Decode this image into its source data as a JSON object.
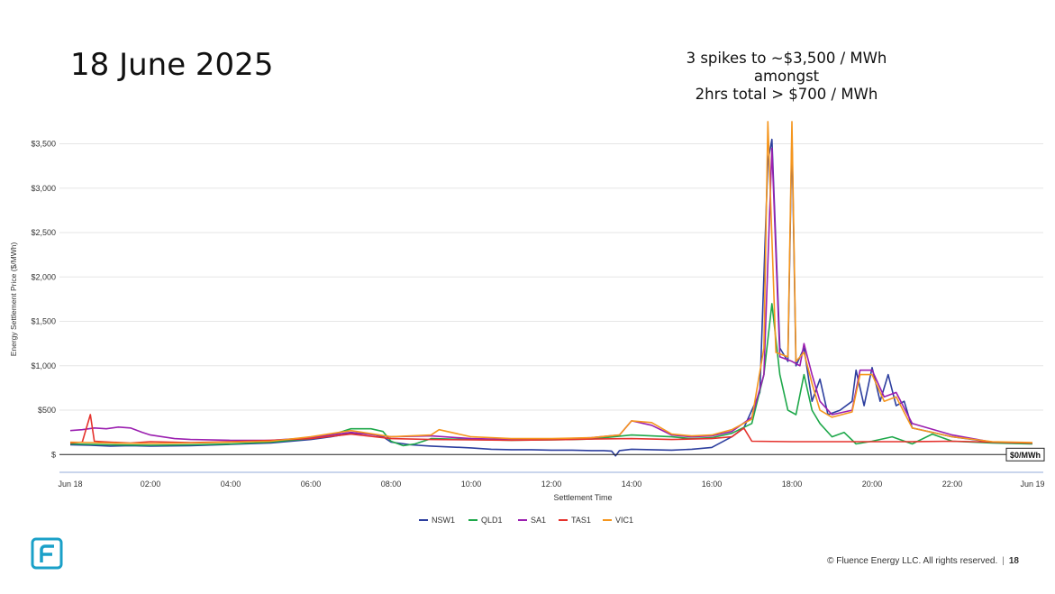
{
  "slide": {
    "title": "18 June 2025",
    "annotation_lines": [
      "3 spikes to ~$3,500 / MWh",
      "amongst",
      "2hrs total > $700 / MWh"
    ],
    "footer_text": "© Fluence Energy LLC. All rights reserved.",
    "page_number": "18",
    "logo_icon": "fluence-logo-icon"
  },
  "chart_data": {
    "type": "line",
    "xlabel": "Settlement Time",
    "ylabel": "Energy Settlement Price ($/MWh)",
    "x_ticks": [
      "Jun 18",
      "02:00",
      "04:00",
      "06:00",
      "08:00",
      "10:00",
      "12:00",
      "14:00",
      "16:00",
      "18:00",
      "20:00",
      "22:00",
      "Jun 19"
    ],
    "y_ticks": [
      "$",
      "$500",
      "$1,000",
      "$1,500",
      "$2,000",
      "$2,500",
      "$3,000",
      "$3,500"
    ],
    "y_tick_values": [
      0,
      500,
      1000,
      1500,
      2000,
      2500,
      3000,
      3500
    ],
    "ylim": [
      -200,
      3800
    ],
    "xlim_hours": [
      0,
      24
    ],
    "reference_line": {
      "value": 0,
      "label": "$0/MWh"
    },
    "grid": "horizontal",
    "legend_position": "bottom",
    "series": [
      {
        "name": "NSW1",
        "color": "#2c3e9e",
        "points": [
          [
            0,
            110
          ],
          [
            0.5,
            105
          ],
          [
            1,
            95
          ],
          [
            1.5,
            100
          ],
          [
            2,
            95
          ],
          [
            3,
            100
          ],
          [
            4,
            115
          ],
          [
            5,
            130
          ],
          [
            6,
            170
          ],
          [
            6.5,
            200
          ],
          [
            7,
            240
          ],
          [
            7.5,
            230
          ],
          [
            7.8,
            200
          ],
          [
            8,
            140
          ],
          [
            8.5,
            110
          ],
          [
            9,
            95
          ],
          [
            10,
            75
          ],
          [
            10.5,
            60
          ],
          [
            11,
            55
          ],
          [
            11.5,
            55
          ],
          [
            12,
            50
          ],
          [
            12.5,
            50
          ],
          [
            13,
            45
          ],
          [
            13.3,
            45
          ],
          [
            13.5,
            40
          ],
          [
            13.6,
            -15
          ],
          [
            13.7,
            45
          ],
          [
            14,
            60
          ],
          [
            14.5,
            55
          ],
          [
            15,
            50
          ],
          [
            15.5,
            60
          ],
          [
            16,
            80
          ],
          [
            16.5,
            200
          ],
          [
            16.8,
            300
          ],
          [
            17.2,
            700
          ],
          [
            17.4,
            3300
          ],
          [
            17.5,
            3550
          ],
          [
            17.7,
            1200
          ],
          [
            17.9,
            1050
          ],
          [
            18.0,
            3600
          ],
          [
            18.1,
            1000
          ],
          [
            18.3,
            1200
          ],
          [
            18.5,
            600
          ],
          [
            18.7,
            850
          ],
          [
            18.9,
            450
          ],
          [
            19.2,
            500
          ],
          [
            19.5,
            600
          ],
          [
            19.6,
            950
          ],
          [
            19.8,
            550
          ],
          [
            20.0,
            980
          ],
          [
            20.2,
            600
          ],
          [
            20.4,
            900
          ],
          [
            20.6,
            550
          ],
          [
            20.8,
            600
          ],
          [
            21,
            300
          ],
          [
            22,
            200
          ],
          [
            23,
            140
          ],
          [
            24,
            130
          ]
        ]
      },
      {
        "name": "QLD1",
        "color": "#1ea84a",
        "points": [
          [
            0,
            120
          ],
          [
            0.5,
            115
          ],
          [
            1,
            110
          ],
          [
            2,
            105
          ],
          [
            3,
            110
          ],
          [
            4,
            120
          ],
          [
            5,
            140
          ],
          [
            6,
            180
          ],
          [
            6.5,
            220
          ],
          [
            7,
            290
          ],
          [
            7.5,
            290
          ],
          [
            7.8,
            260
          ],
          [
            8,
            150
          ],
          [
            8.3,
            100
          ],
          [
            8.6,
            120
          ],
          [
            9,
            180
          ],
          [
            10,
            170
          ],
          [
            11,
            160
          ],
          [
            12,
            165
          ],
          [
            13,
            175
          ],
          [
            14,
            220
          ],
          [
            15,
            200
          ],
          [
            15.5,
            180
          ],
          [
            16,
            190
          ],
          [
            16.5,
            240
          ],
          [
            17,
            350
          ],
          [
            17.3,
            900
          ],
          [
            17.5,
            1700
          ],
          [
            17.7,
            900
          ],
          [
            17.9,
            500
          ],
          [
            18.1,
            450
          ],
          [
            18.3,
            900
          ],
          [
            18.5,
            500
          ],
          [
            18.7,
            350
          ],
          [
            19,
            200
          ],
          [
            19.3,
            250
          ],
          [
            19.6,
            120
          ],
          [
            20,
            150
          ],
          [
            20.5,
            200
          ],
          [
            21,
            120
          ],
          [
            21.5,
            230
          ],
          [
            22,
            150
          ],
          [
            23,
            130
          ],
          [
            24,
            120
          ]
        ]
      },
      {
        "name": "SA1",
        "color": "#9b1fb0",
        "points": [
          [
            0,
            270
          ],
          [
            0.3,
            280
          ],
          [
            0.6,
            300
          ],
          [
            0.9,
            290
          ],
          [
            1.2,
            310
          ],
          [
            1.5,
            300
          ],
          [
            1.8,
            250
          ],
          [
            2,
            220
          ],
          [
            2.3,
            200
          ],
          [
            2.6,
            180
          ],
          [
            3,
            170
          ],
          [
            4,
            160
          ],
          [
            5,
            160
          ],
          [
            6,
            190
          ],
          [
            7,
            250
          ],
          [
            8,
            200
          ],
          [
            9,
            210
          ],
          [
            10,
            180
          ],
          [
            11,
            170
          ],
          [
            12,
            170
          ],
          [
            13,
            190
          ],
          [
            13.7,
            220
          ],
          [
            14,
            380
          ],
          [
            14.5,
            330
          ],
          [
            15,
            220
          ],
          [
            15.5,
            200
          ],
          [
            16,
            210
          ],
          [
            16.5,
            260
          ],
          [
            17,
            420
          ],
          [
            17.3,
            900
          ],
          [
            17.5,
            3450
          ],
          [
            17.7,
            1100
          ],
          [
            18,
            1050
          ],
          [
            18.2,
            1000
          ],
          [
            18.3,
            1250
          ],
          [
            18.5,
            900
          ],
          [
            18.7,
            600
          ],
          [
            19,
            450
          ],
          [
            19.5,
            500
          ],
          [
            19.7,
            950
          ],
          [
            20,
            950
          ],
          [
            20.3,
            650
          ],
          [
            20.6,
            700
          ],
          [
            21,
            350
          ],
          [
            22,
            220
          ],
          [
            23,
            140
          ],
          [
            24,
            130
          ]
        ]
      },
      {
        "name": "TAS1",
        "color": "#e5322d",
        "points": [
          [
            0,
            130
          ],
          [
            0.3,
            140
          ],
          [
            0.5,
            450
          ],
          [
            0.6,
            150
          ],
          [
            1,
            140
          ],
          [
            1.5,
            130
          ],
          [
            2,
            145
          ],
          [
            3,
            135
          ],
          [
            4,
            145
          ],
          [
            5,
            160
          ],
          [
            6,
            180
          ],
          [
            7,
            230
          ],
          [
            8,
            180
          ],
          [
            9,
            170
          ],
          [
            10,
            165
          ],
          [
            11,
            160
          ],
          [
            12,
            165
          ],
          [
            13,
            175
          ],
          [
            14,
            180
          ],
          [
            15,
            170
          ],
          [
            16,
            180
          ],
          [
            16.5,
            200
          ],
          [
            16.8,
            300
          ],
          [
            17,
            150
          ],
          [
            18,
            145
          ],
          [
            19,
            145
          ],
          [
            20,
            145
          ],
          [
            21,
            145
          ],
          [
            22,
            150
          ],
          [
            23,
            140
          ],
          [
            24,
            130
          ]
        ]
      },
      {
        "name": "VIC1",
        "color": "#f5961e",
        "points": [
          [
            0,
            140
          ],
          [
            1,
            130
          ],
          [
            2,
            125
          ],
          [
            3,
            130
          ],
          [
            4,
            140
          ],
          [
            5,
            150
          ],
          [
            6,
            200
          ],
          [
            7,
            270
          ],
          [
            8,
            200
          ],
          [
            9,
            220
          ],
          [
            9.2,
            280
          ],
          [
            10,
            200
          ],
          [
            11,
            180
          ],
          [
            12,
            180
          ],
          [
            13,
            190
          ],
          [
            13.7,
            220
          ],
          [
            14,
            380
          ],
          [
            14.5,
            360
          ],
          [
            15,
            230
          ],
          [
            15.5,
            210
          ],
          [
            16,
            220
          ],
          [
            16.5,
            280
          ],
          [
            17,
            400
          ],
          [
            17.3,
            1200
          ],
          [
            17.4,
            3750
          ],
          [
            17.6,
            1150
          ],
          [
            17.9,
            1100
          ],
          [
            18.0,
            3750
          ],
          [
            18.1,
            1050
          ],
          [
            18.3,
            1150
          ],
          [
            18.5,
            800
          ],
          [
            18.7,
            500
          ],
          [
            19,
            420
          ],
          [
            19.5,
            480
          ],
          [
            19.7,
            900
          ],
          [
            20,
            900
          ],
          [
            20.3,
            600
          ],
          [
            20.6,
            650
          ],
          [
            21,
            300
          ],
          [
            22,
            200
          ],
          [
            23,
            145
          ],
          [
            24,
            135
          ]
        ]
      }
    ]
  }
}
